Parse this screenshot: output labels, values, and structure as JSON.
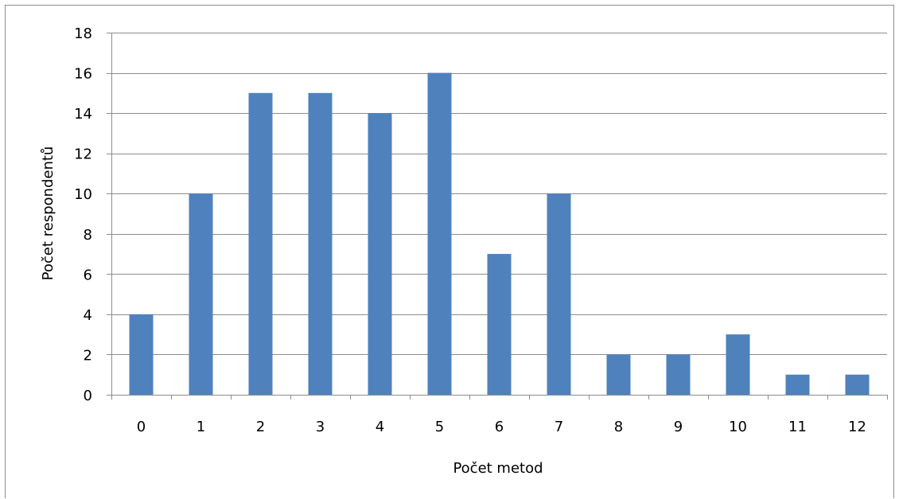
{
  "chart_data": {
    "type": "bar",
    "categories": [
      "0",
      "1",
      "2",
      "3",
      "4",
      "5",
      "6",
      "7",
      "8",
      "9",
      "10",
      "11",
      "12"
    ],
    "values": [
      4,
      10,
      15,
      15,
      14,
      16,
      7,
      10,
      2,
      2,
      3,
      1,
      1
    ],
    "xlabel": "Počet metod",
    "ylabel": "Počet respondentů",
    "ylim": [
      0,
      18
    ],
    "yticks": [
      0,
      2,
      4,
      6,
      8,
      10,
      12,
      14,
      16,
      18
    ],
    "grid": true,
    "legend": "none",
    "bar_color": "#4f81bd"
  }
}
